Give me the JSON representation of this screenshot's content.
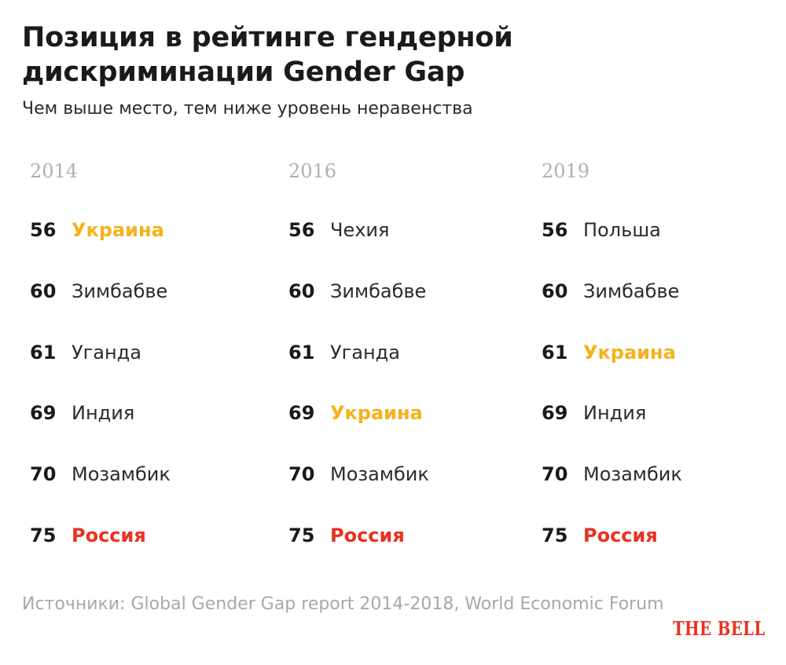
{
  "header": {
    "title": "Позиция в рейтинге гендерной дискриминации Gender Gap",
    "subtitle": "Чем выше место, тем ниже уровень неравенства"
  },
  "chart_data": {
    "type": "table",
    "title": "Позиция в рейтинге гендерной дискриминации Gender Gap",
    "subtitle": "Чем выше место, тем ниже уровень неравенства",
    "columns": [
      {
        "year": "2014",
        "rows": [
          {
            "rank": "56",
            "country": "Украина",
            "highlight": "ukraine"
          },
          {
            "rank": "60",
            "country": "Зимбабве",
            "highlight": "none"
          },
          {
            "rank": "61",
            "country": "Уганда",
            "highlight": "none"
          },
          {
            "rank": "69",
            "country": "Индия",
            "highlight": "none"
          },
          {
            "rank": "70",
            "country": "Мозамбик",
            "highlight": "none"
          },
          {
            "rank": "75",
            "country": "Россия",
            "highlight": "russia"
          }
        ]
      },
      {
        "year": "2016",
        "rows": [
          {
            "rank": "56",
            "country": "Чехия",
            "highlight": "none"
          },
          {
            "rank": "60",
            "country": "Зимбабве",
            "highlight": "none"
          },
          {
            "rank": "61",
            "country": "Уганда",
            "highlight": "none"
          },
          {
            "rank": "69",
            "country": "Украина",
            "highlight": "ukraine"
          },
          {
            "rank": "70",
            "country": "Мозамбик",
            "highlight": "none"
          },
          {
            "rank": "75",
            "country": "Россия",
            "highlight": "russia"
          }
        ]
      },
      {
        "year": "2019",
        "rows": [
          {
            "rank": "56",
            "country": "Польша",
            "highlight": "none"
          },
          {
            "rank": "60",
            "country": "Зимбабве",
            "highlight": "none"
          },
          {
            "rank": "61",
            "country": "Украина",
            "highlight": "ukraine"
          },
          {
            "rank": "69",
            "country": "Индия",
            "highlight": "none"
          },
          {
            "rank": "70",
            "country": "Мозамбик",
            "highlight": "none"
          },
          {
            "rank": "75",
            "country": "Россия",
            "highlight": "russia"
          }
        ]
      }
    ],
    "highlight_colors": {
      "ukraine": "#f5b21b",
      "russia": "#e8321f"
    }
  },
  "footer": {
    "source": "Источники: Global Gender Gap report 2014-2018, World Economic Forum",
    "logo": "THE BELL"
  }
}
